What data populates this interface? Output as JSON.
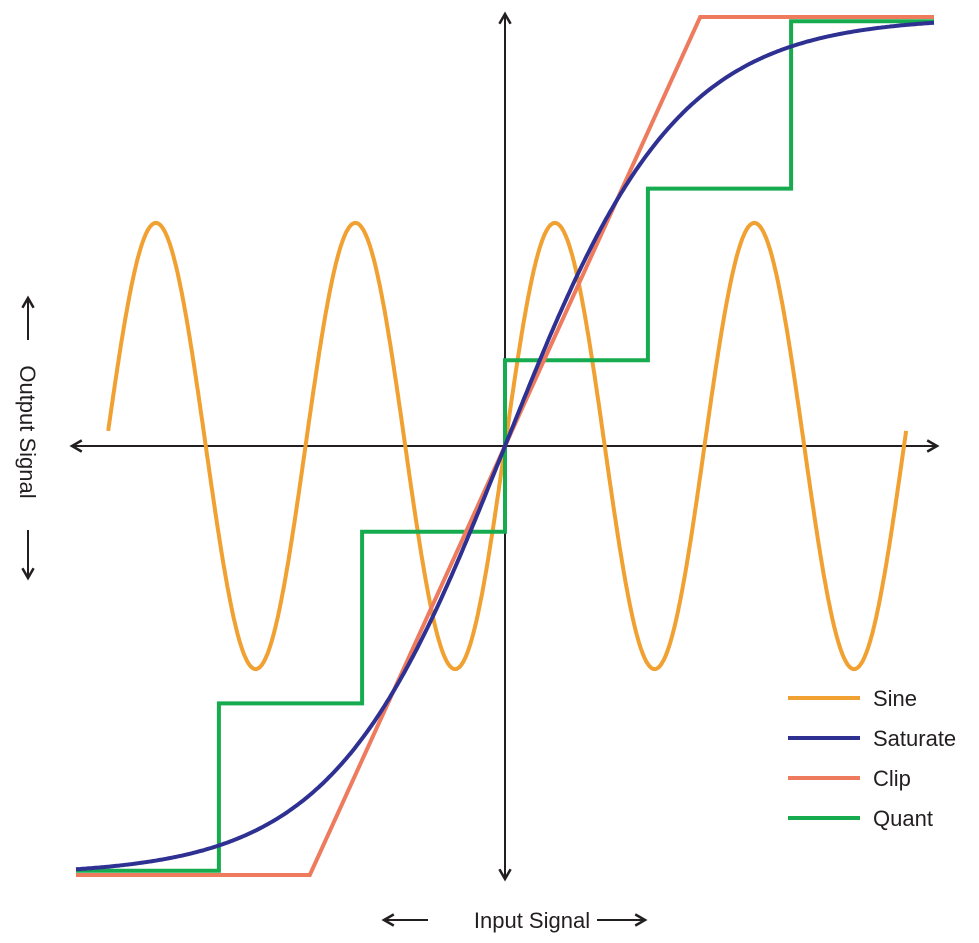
{
  "chart_data": {
    "type": "line",
    "title": "",
    "xlabel": "Input Signal",
    "ylabel": "Output Signal",
    "xlim": [
      -1,
      1
    ],
    "ylim": [
      -1,
      1
    ],
    "grid": false,
    "ticks": false,
    "legend_placement": "bottom-right",
    "series": [
      {
        "name": "Sine",
        "color": "#f0a131",
        "kind": "sine",
        "amplitude": 0.52,
        "period": 0.465,
        "phase": 0,
        "domain": [
          -0.925,
          0.935
        ]
      },
      {
        "name": "Saturate",
        "color": "#2e3192",
        "kind": "tanh",
        "gain": 2.5,
        "domain": [
          -1,
          1
        ]
      },
      {
        "name": "Clip",
        "color": "#ee7b5e",
        "kind": "polyline",
        "points": [
          [
            -1,
            -1
          ],
          [
            -0.455,
            -1
          ],
          [
            0.455,
            1
          ],
          [
            1,
            1
          ]
        ]
      },
      {
        "name": "Quant",
        "color": "#16ab4f",
        "kind": "step",
        "points": [
          [
            -1,
            -0.99
          ],
          [
            -0.667,
            -0.6
          ],
          [
            -0.333,
            -0.2
          ],
          [
            0,
            0.2
          ],
          [
            0.333,
            0.6
          ],
          [
            0.667,
            0.99
          ],
          [
            1,
            0.99
          ]
        ]
      }
    ]
  }
}
